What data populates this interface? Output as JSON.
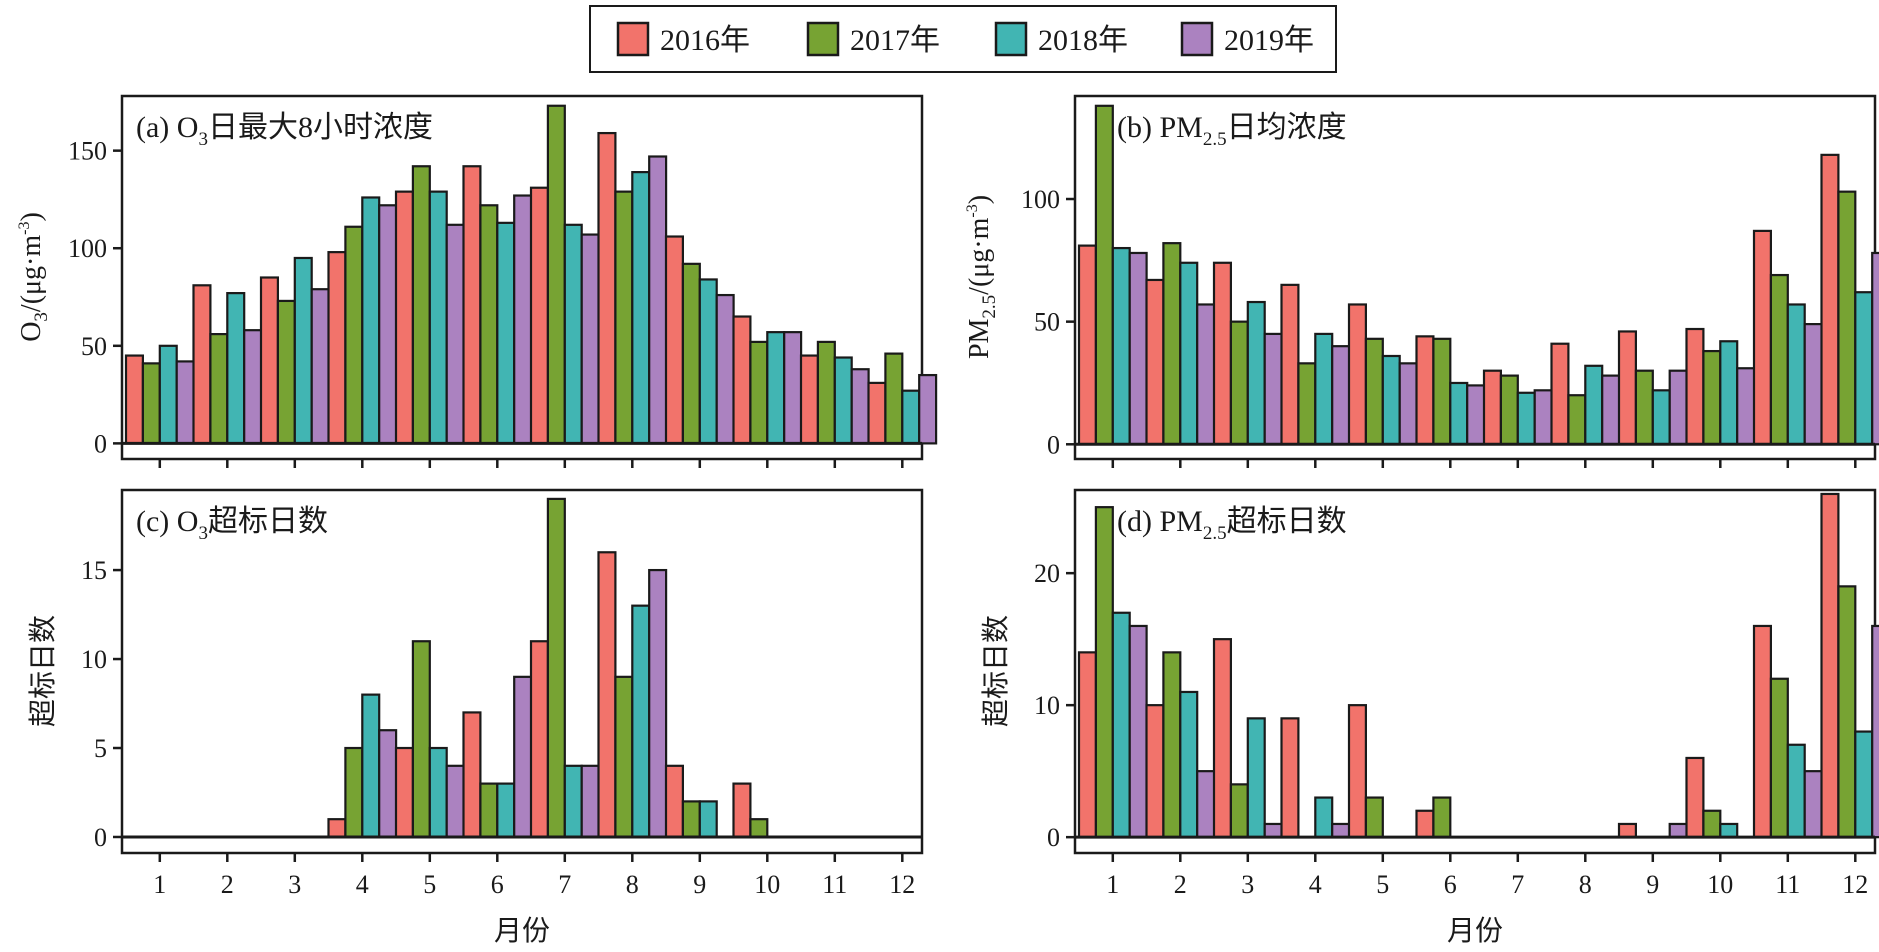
{
  "chart_data": [
    {
      "id": "a",
      "type": "bar",
      "title_prefix": "(a) O",
      "title_sub": "3",
      "title_suffix": "日最大8小时浓度",
      "ylabel_main": "O",
      "ylabel_sub": "3",
      "ylabel_unit": "/(μg·m",
      "ylabel_sup": "-3",
      "ylabel_close": ")",
      "xlabel": "",
      "ylim": [
        -8,
        178
      ],
      "yticks": [
        "0",
        "50",
        "100",
        "150"
      ],
      "categories": [
        "1",
        "2",
        "3",
        "4",
        "5",
        "6",
        "7",
        "8",
        "9",
        "10",
        "11",
        "12"
      ],
      "series": [
        {
          "name": "2016年",
          "values": [
            45,
            81,
            85,
            98,
            129,
            142,
            131,
            159,
            106,
            65,
            45,
            31
          ]
        },
        {
          "name": "2017年",
          "values": [
            41,
            56,
            73,
            111,
            142,
            122,
            173,
            129,
            92,
            52,
            52,
            46
          ]
        },
        {
          "name": "2018年",
          "values": [
            50,
            77,
            95,
            126,
            129,
            113,
            112,
            139,
            84,
            57,
            44,
            27
          ]
        },
        {
          "name": "2019年",
          "values": [
            42,
            58,
            79,
            122,
            112,
            127,
            107,
            147,
            76,
            57,
            38,
            35
          ]
        }
      ]
    },
    {
      "id": "b",
      "type": "bar",
      "title_prefix": "(b) PM",
      "title_sub": "2.5",
      "title_suffix": "日均浓度",
      "ylabel_main": "PM",
      "ylabel_sub": "2.5",
      "ylabel_unit": "/(μg·m",
      "ylabel_sup": "-3",
      "ylabel_close": ")",
      "xlabel": "",
      "ylim": [
        -6,
        142
      ],
      "yticks": [
        "0",
        "50",
        "100"
      ],
      "categories": [
        "1",
        "2",
        "3",
        "4",
        "5",
        "6",
        "7",
        "8",
        "9",
        "10",
        "11",
        "12"
      ],
      "series": [
        {
          "name": "2016年",
          "values": [
            81,
            67,
            74,
            65,
            57,
            44,
            30,
            41,
            46,
            47,
            87,
            118
          ]
        },
        {
          "name": "2017年",
          "values": [
            138,
            82,
            50,
            33,
            43,
            43,
            28,
            20,
            30,
            38,
            69,
            103
          ]
        },
        {
          "name": "2018年",
          "values": [
            80,
            74,
            58,
            45,
            36,
            25,
            21,
            32,
            22,
            42,
            57,
            62
          ]
        },
        {
          "name": "2019年",
          "values": [
            78,
            57,
            45,
            40,
            33,
            24,
            22,
            28,
            30,
            31,
            49,
            78
          ]
        }
      ]
    },
    {
      "id": "c",
      "type": "bar",
      "title_prefix": "(c) O",
      "title_sub": "3",
      "title_suffix": "超标日数",
      "ylabel": "超标日数",
      "xlabel": "月份",
      "ylim": [
        -0.9,
        19.5
      ],
      "yticks": [
        "0",
        "5",
        "10",
        "15"
      ],
      "categories": [
        "1",
        "2",
        "3",
        "4",
        "5",
        "6",
        "7",
        "8",
        "9",
        "10",
        "11",
        "12"
      ],
      "series": [
        {
          "name": "2016年",
          "values": [
            0,
            0,
            0,
            1,
            5,
            7,
            11,
            16,
            4,
            3,
            0,
            0
          ]
        },
        {
          "name": "2017年",
          "values": [
            0,
            0,
            0,
            5,
            11,
            3,
            19,
            9,
            2,
            1,
            0,
            0
          ]
        },
        {
          "name": "2018年",
          "values": [
            0,
            0,
            0,
            8,
            5,
            3,
            4,
            13,
            2,
            0,
            0,
            0
          ]
        },
        {
          "name": "2019年",
          "values": [
            0,
            0,
            0,
            6,
            4,
            9,
            4,
            15,
            0,
            0,
            0,
            0
          ]
        }
      ]
    },
    {
      "id": "d",
      "type": "bar",
      "title_prefix": "(d) PM",
      "title_sub": "2.5",
      "title_suffix": "超标日数",
      "ylabel": "超标日数",
      "xlabel": "月份",
      "ylim": [
        -1.2,
        26.3
      ],
      "yticks": [
        "0",
        "10",
        "20"
      ],
      "categories": [
        "1",
        "2",
        "3",
        "4",
        "5",
        "6",
        "7",
        "8",
        "9",
        "10",
        "11",
        "12"
      ],
      "series": [
        {
          "name": "2016年",
          "values": [
            14,
            10,
            15,
            9,
            10,
            2,
            0,
            0,
            1,
            6,
            16,
            26
          ]
        },
        {
          "name": "2017年",
          "values": [
            25,
            14,
            4,
            0,
            3,
            3,
            0,
            0,
            0,
            2,
            12,
            19
          ]
        },
        {
          "name": "2018年",
          "values": [
            17,
            11,
            9,
            3,
            0,
            0,
            0,
            0,
            0,
            1,
            7,
            8
          ]
        },
        {
          "name": "2019年",
          "values": [
            16,
            5,
            1,
            1,
            0,
            0,
            0,
            0,
            1,
            0,
            5,
            16
          ]
        }
      ]
    }
  ],
  "legend": [
    {
      "label": "2016年",
      "color": "#F2736B"
    },
    {
      "label": "2017年",
      "color": "#77A333"
    },
    {
      "label": "2018年",
      "color": "#41B5B3"
    },
    {
      "label": "2019年",
      "color": "#AB82C0"
    }
  ],
  "colors": {
    "bar_outline": "#1a1a1a",
    "axis": "#1a1a1a"
  }
}
